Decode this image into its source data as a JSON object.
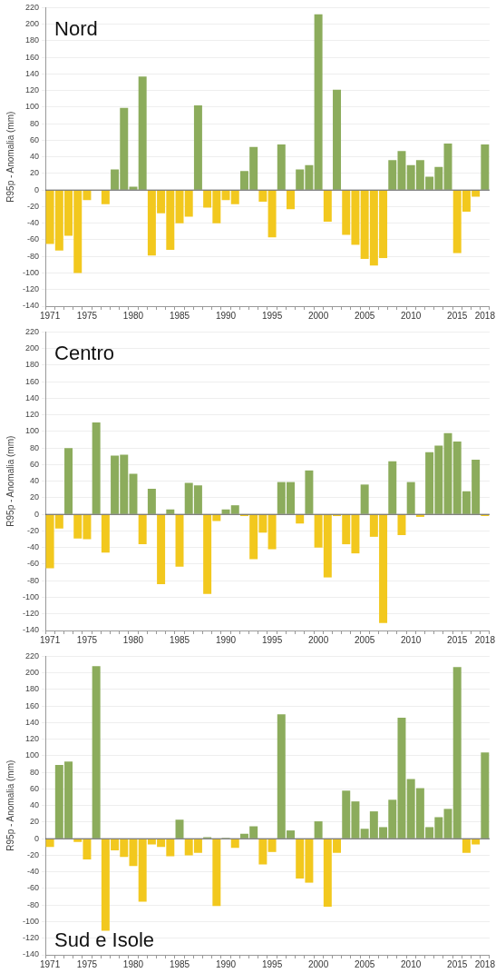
{
  "chart_data": [
    {
      "type": "bar",
      "title": "Nord",
      "ylabel": "R95p - Anomalia (mm)",
      "categories": [
        "1971",
        null,
        null,
        null,
        "1975",
        null,
        null,
        null,
        null,
        "1980",
        null,
        null,
        null,
        null,
        "1985",
        null,
        null,
        null,
        null,
        "1990",
        null,
        null,
        null,
        null,
        "1995",
        null,
        null,
        null,
        null,
        "2000",
        null,
        null,
        null,
        null,
        "2005",
        null,
        null,
        null,
        null,
        "2010",
        null,
        null,
        null,
        null,
        "2015",
        null,
        null,
        "2018"
      ],
      "values": [
        -65,
        -73,
        -55,
        -100,
        -12,
        0,
        -17,
        25,
        99,
        4,
        137,
        -79,
        -28,
        -72,
        -40,
        -32,
        102,
        -21,
        -40,
        -12,
        -17,
        23,
        52,
        -14,
        -57,
        55,
        -23,
        25,
        30,
        212,
        -38,
        121,
        -54,
        -66,
        -83,
        -91,
        -82,
        36,
        47,
        30,
        36,
        16,
        28,
        56,
        -76,
        -26,
        -8,
        55
      ],
      "colors": [
        "#f2c81e",
        "#f2c81e",
        "#f2c81e",
        "#f2c81e",
        "#f2c81e",
        "#f2c81e",
        "#f2c81e",
        "#8cac5c",
        "#8cac5c",
        "#8cac5c",
        "#8cac5c",
        "#f2c81e",
        "#f2c81e",
        "#f2c81e",
        "#f2c81e",
        "#f2c81e",
        "#8cac5c",
        "#f2c81e",
        "#f2c81e",
        "#f2c81e",
        "#f2c81e",
        "#8cac5c",
        "#8cac5c",
        "#f2c81e",
        "#f2c81e",
        "#8cac5c",
        "#f2c81e",
        "#8cac5c",
        "#8cac5c",
        "#8cac5c",
        "#f2c81e",
        "#8cac5c",
        "#f2c81e",
        "#f2c81e",
        "#f2c81e",
        "#f2c81e",
        "#f2c81e",
        "#8cac5c",
        "#8cac5c",
        "#8cac5c",
        "#8cac5c",
        "#8cac5c",
        "#8cac5c",
        "#8cac5c",
        "#f2c81e",
        "#f2c81e",
        "#f2c81e",
        "#8cac5c"
      ],
      "ylim": [
        -140,
        220
      ],
      "yticks": [
        -140,
        -120,
        -100,
        -80,
        -60,
        -40,
        -20,
        0,
        20,
        40,
        60,
        80,
        100,
        120,
        140,
        160,
        180,
        200,
        220
      ],
      "grid": "y"
    },
    {
      "type": "bar",
      "title": "Centro",
      "ylabel": "R95p - Anomalia (mm)",
      "categories": [
        "1971",
        null,
        null,
        null,
        "1975",
        null,
        null,
        null,
        null,
        "1980",
        null,
        null,
        null,
        null,
        "1985",
        null,
        null,
        null,
        null,
        "1990",
        null,
        null,
        null,
        null,
        "1995",
        null,
        null,
        null,
        null,
        "2000",
        null,
        null,
        null,
        null,
        "2005",
        null,
        null,
        null,
        null,
        "2010",
        null,
        null,
        null,
        null,
        "2015",
        null,
        null,
        "2018"
      ],
      "values": [
        -65,
        -17,
        80,
        -29,
        -30,
        111,
        -46,
        71,
        72,
        49,
        -36,
        31,
        -84,
        6,
        -63,
        38,
        35,
        -96,
        -8,
        6,
        11,
        -2,
        -54,
        -22,
        -42,
        39,
        39,
        -11,
        53,
        -40,
        -76,
        -2,
        -36,
        -47,
        36,
        -27,
        -131,
        64,
        -25,
        39,
        -3,
        75,
        83,
        98,
        88,
        28,
        66,
        -2
      ],
      "colors": [
        "#f2c81e",
        "#f2c81e",
        "#8cac5c",
        "#f2c81e",
        "#f2c81e",
        "#8cac5c",
        "#f2c81e",
        "#8cac5c",
        "#8cac5c",
        "#8cac5c",
        "#f2c81e",
        "#8cac5c",
        "#f2c81e",
        "#8cac5c",
        "#f2c81e",
        "#8cac5c",
        "#8cac5c",
        "#f2c81e",
        "#f2c81e",
        "#8cac5c",
        "#8cac5c",
        "#f2c81e",
        "#f2c81e",
        "#f2c81e",
        "#f2c81e",
        "#8cac5c",
        "#8cac5c",
        "#f2c81e",
        "#8cac5c",
        "#f2c81e",
        "#f2c81e",
        "#f2c81e",
        "#f2c81e",
        "#f2c81e",
        "#8cac5c",
        "#f2c81e",
        "#f2c81e",
        "#8cac5c",
        "#f2c81e",
        "#8cac5c",
        "#f2c81e",
        "#8cac5c",
        "#8cac5c",
        "#8cac5c",
        "#8cac5c",
        "#8cac5c",
        "#8cac5c",
        "#f2c81e"
      ],
      "ylim": [
        -140,
        220
      ],
      "yticks": [
        -140,
        -120,
        -100,
        -80,
        -60,
        -40,
        -20,
        0,
        20,
        40,
        60,
        80,
        100,
        120,
        140,
        160,
        180,
        200,
        220
      ],
      "grid": "y"
    },
    {
      "type": "bar",
      "title": "Sud e Isole",
      "ylabel": "R95p - Anomalia (mm)",
      "categories": [
        "1971",
        null,
        null,
        null,
        "1975",
        null,
        null,
        null,
        null,
        "1980",
        null,
        null,
        null,
        null,
        "1985",
        null,
        null,
        null,
        null,
        "1990",
        null,
        null,
        null,
        null,
        "1995",
        null,
        null,
        null,
        null,
        "2000",
        null,
        null,
        null,
        null,
        "2005",
        null,
        null,
        null,
        null,
        "2010",
        null,
        null,
        null,
        null,
        "2015",
        null,
        null,
        "2018"
      ],
      "values": [
        -10,
        89,
        93,
        -4,
        -25,
        208,
        -111,
        -14,
        -22,
        -33,
        -76,
        -7,
        -10,
        -21,
        23,
        -20,
        -17,
        2,
        -81,
        1,
        -11,
        6,
        15,
        -31,
        -16,
        150,
        10,
        -48,
        -53,
        21,
        -82,
        -17,
        58,
        45,
        12,
        33,
        14,
        47,
        146,
        72,
        61,
        14,
        26,
        36,
        207,
        -17,
        -7,
        104
      ],
      "colors": [
        "#f2c81e",
        "#8cac5c",
        "#8cac5c",
        "#f2c81e",
        "#f2c81e",
        "#8cac5c",
        "#f2c81e",
        "#f2c81e",
        "#f2c81e",
        "#f2c81e",
        "#f2c81e",
        "#f2c81e",
        "#f2c81e",
        "#f2c81e",
        "#8cac5c",
        "#f2c81e",
        "#f2c81e",
        "#8cac5c",
        "#f2c81e",
        "#8cac5c",
        "#f2c81e",
        "#8cac5c",
        "#8cac5c",
        "#f2c81e",
        "#f2c81e",
        "#8cac5c",
        "#8cac5c",
        "#f2c81e",
        "#f2c81e",
        "#8cac5c",
        "#f2c81e",
        "#f2c81e",
        "#8cac5c",
        "#8cac5c",
        "#8cac5c",
        "#8cac5c",
        "#8cac5c",
        "#8cac5c",
        "#8cac5c",
        "#8cac5c",
        "#8cac5c",
        "#8cac5c",
        "#8cac5c",
        "#8cac5c",
        "#8cac5c",
        "#f2c81e",
        "#f2c81e",
        "#8cac5c"
      ],
      "ylim": [
        -140,
        220
      ],
      "yticks": [
        -140,
        -120,
        -100,
        -80,
        -60,
        -40,
        -20,
        0,
        20,
        40,
        60,
        80,
        100,
        120,
        140,
        160,
        180,
        200,
        220
      ],
      "grid": "y"
    }
  ]
}
